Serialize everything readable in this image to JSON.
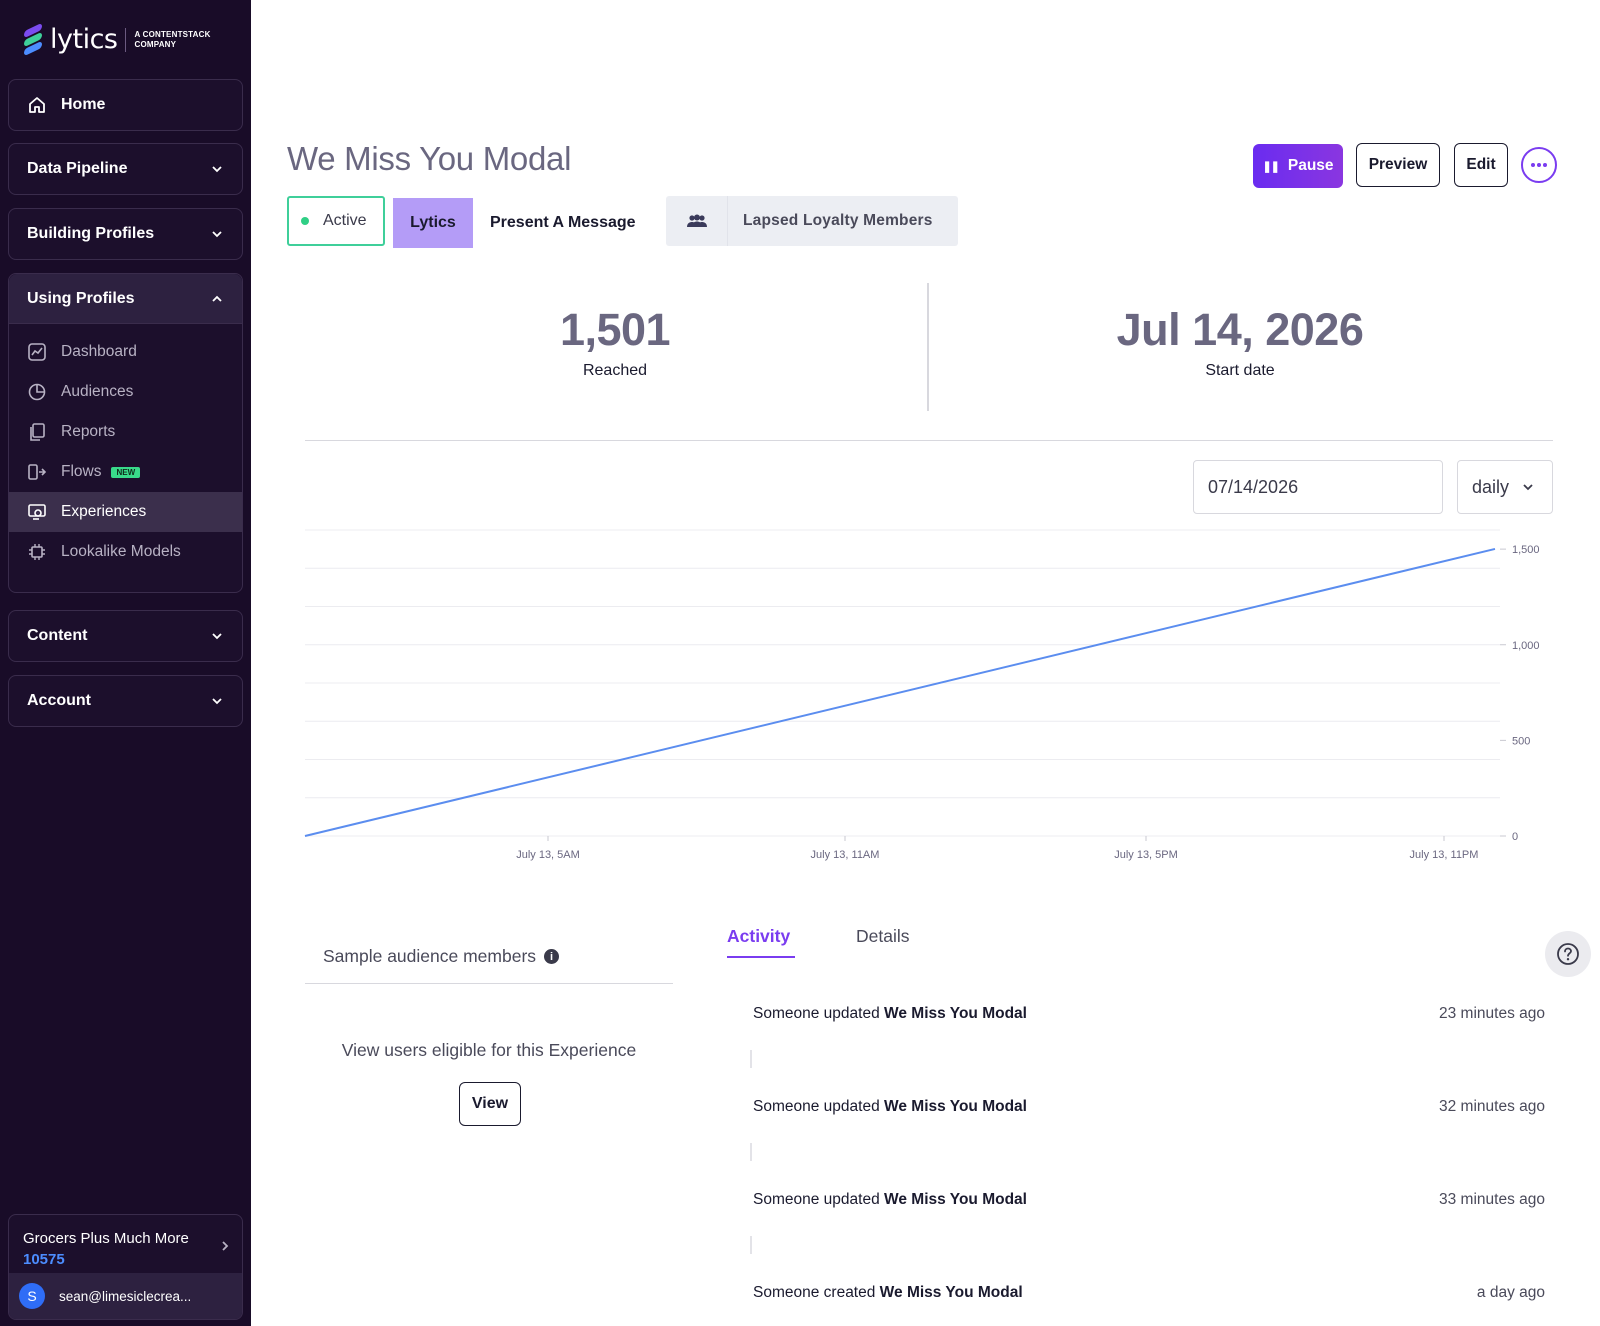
{
  "brand": {
    "name": "lytics",
    "sub_line1": "A CONTENTSTACK",
    "sub_line2": "COMPANY"
  },
  "sidebar": {
    "home": "Home",
    "data_pipeline": "Data Pipeline",
    "building_profiles": "Building Profiles",
    "using_profiles": "Using Profiles",
    "items": [
      {
        "label": "Dashboard",
        "icon": "dashboard-icon"
      },
      {
        "label": "Audiences",
        "icon": "pie-chart-icon"
      },
      {
        "label": "Reports",
        "icon": "copy-icon"
      },
      {
        "label": "Flows",
        "icon": "flow-icon",
        "badge": "NEW"
      },
      {
        "label": "Experiences",
        "icon": "experience-icon"
      },
      {
        "label": "Lookalike Models",
        "icon": "chip-icon"
      }
    ],
    "content": "Content",
    "account": "Account",
    "org": {
      "name": "Grocers Plus Much More",
      "id": "10575"
    },
    "user": {
      "initial": "S",
      "email": "sean@limesiclecrea..."
    }
  },
  "header": {
    "title": "We Miss You Modal",
    "pause": "Pause",
    "preview": "Preview",
    "edit": "Edit"
  },
  "tags": {
    "status": "Active",
    "provider": "Lytics",
    "type": "Present A Message",
    "audience": "Lapsed Loyalty Members"
  },
  "stats": {
    "reached_value": "1,501",
    "reached_label": "Reached",
    "start_value": "Jul 14, 2026",
    "start_label": "Start date"
  },
  "controls": {
    "date": "07/14/2026",
    "granularity": "daily"
  },
  "chart_data": {
    "type": "line",
    "x": [
      "July 13, 5AM",
      "July 13, 11AM",
      "July 13, 5PM",
      "July 13, 11PM"
    ],
    "x_ticks": [
      "July 13, 5AM",
      "July 13, 11AM",
      "July 13, 5PM",
      "July 13, 11PM"
    ],
    "y_ticks": [
      "0",
      "500",
      "1,000",
      "1,500"
    ],
    "ylim": [
      0,
      1600
    ],
    "series": [
      {
        "points": [
          [
            0,
            0
          ],
          [
            1,
            1501
          ]
        ]
      }
    ],
    "color": "#5b8def",
    "grid": true
  },
  "sample": {
    "title": "Sample audience members",
    "description": "View users eligible for this Experience",
    "view": "View"
  },
  "tabs": {
    "activity": "Activity",
    "details": "Details"
  },
  "activity": [
    {
      "prefix": "Someone updated",
      "name": "We Miss You Modal",
      "time": "23 minutes ago"
    },
    {
      "prefix": "Someone updated",
      "name": "We Miss You Modal",
      "time": "32 minutes ago"
    },
    {
      "prefix": "Someone updated",
      "name": "We Miss You Modal",
      "time": "33 minutes ago"
    },
    {
      "prefix": "Someone created",
      "name": "We Miss You Modal",
      "time": "a day ago"
    }
  ]
}
